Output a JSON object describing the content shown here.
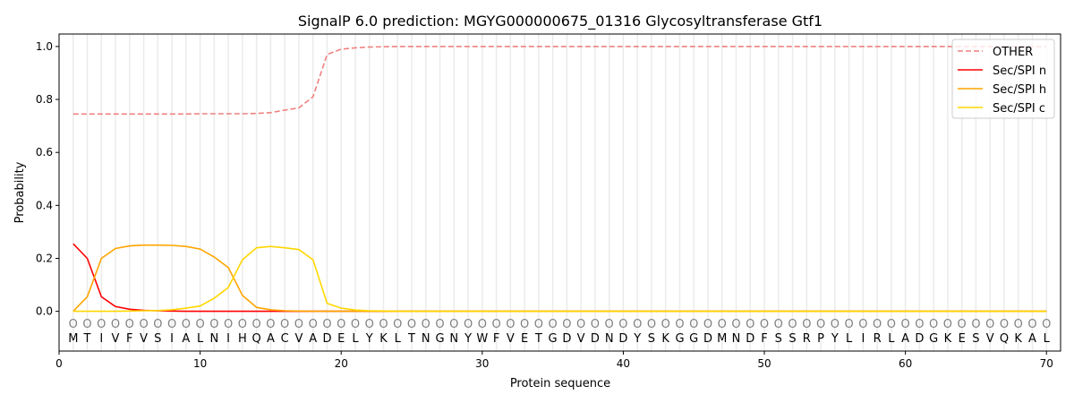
{
  "chart_data": {
    "type": "line",
    "title": "SignalP 6.0 prediction: MGYG000000675_01316 Glycosyltransferase Gtf1",
    "xlabel": "Protein sequence",
    "ylabel": "Probability",
    "xlim": [
      0,
      71
    ],
    "ylim": [
      -0.15,
      1.047
    ],
    "xticks": [
      0,
      10,
      20,
      30,
      40,
      50,
      60,
      70
    ],
    "yticks": [
      0.0,
      0.2,
      0.4,
      0.6,
      0.8,
      1.0
    ],
    "ytick_labels": [
      "0.0",
      "0.2",
      "0.4",
      "0.6",
      "0.8",
      "1.0"
    ],
    "legend_placement": "top-right",
    "vertical_grid": true,
    "sequence": "MTIVFVSIALNIHQACVADELYKLTNGNYWFVETGDVDNDYSKGGDMNDFSSRPYLIRLADGKESVQKAL",
    "position_label_glyph": "O",
    "series": [
      {
        "name": "OTHER",
        "color": "#f08080",
        "dashed": true,
        "values": [
          0.745,
          0.745,
          0.745,
          0.745,
          0.745,
          0.745,
          0.745,
          0.745,
          0.745,
          0.746,
          0.746,
          0.746,
          0.746,
          0.747,
          0.75,
          0.76,
          0.768,
          0.81,
          0.97,
          0.99,
          0.995,
          0.998,
          0.999,
          1,
          1,
          1,
          1,
          1,
          1,
          1,
          1,
          1,
          1,
          1,
          1,
          1,
          1,
          1,
          1,
          1,
          1,
          1,
          1,
          1,
          1,
          1,
          1,
          1,
          1,
          1,
          1,
          1,
          1,
          1,
          1,
          1,
          1,
          1,
          1,
          1,
          1,
          1,
          1,
          1,
          1,
          1,
          1,
          1,
          1,
          1
        ]
      },
      {
        "name": "Sec/SPI n",
        "color": "#ff0000",
        "dashed": false,
        "values": [
          0.255,
          0.2,
          0.055,
          0.018,
          0.008,
          0.004,
          0.002,
          0.001,
          0,
          0,
          0,
          0,
          0,
          0,
          0,
          0,
          0,
          0,
          0,
          0,
          0,
          0,
          0,
          0,
          0,
          0,
          0,
          0,
          0,
          0,
          0,
          0,
          0,
          0,
          0,
          0,
          0,
          0,
          0,
          0,
          0,
          0,
          0,
          0,
          0,
          0,
          0,
          0,
          0,
          0,
          0,
          0,
          0,
          0,
          0,
          0,
          0,
          0,
          0,
          0,
          0,
          0,
          0,
          0,
          0,
          0,
          0,
          0,
          0,
          0
        ]
      },
      {
        "name": "Sec/SPI h",
        "color": "#ffa500",
        "dashed": false,
        "values": [
          0,
          0.055,
          0.2,
          0.237,
          0.247,
          0.25,
          0.25,
          0.249,
          0.245,
          0.235,
          0.205,
          0.165,
          0.06,
          0.015,
          0.006,
          0.002,
          0.001,
          0,
          0,
          0,
          0,
          0,
          0,
          0,
          0,
          0,
          0,
          0,
          0,
          0,
          0,
          0,
          0,
          0,
          0,
          0,
          0,
          0,
          0,
          0,
          0,
          0,
          0,
          0,
          0,
          0,
          0,
          0,
          0,
          0,
          0,
          0,
          0,
          0,
          0,
          0,
          0,
          0,
          0,
          0,
          0,
          0,
          0,
          0,
          0,
          0,
          0,
          0,
          0,
          0
        ]
      },
      {
        "name": "Sec/SPI c",
        "color": "#ffd700",
        "dashed": false,
        "values": [
          0,
          0,
          0,
          0,
          0.001,
          0.002,
          0.003,
          0.006,
          0.012,
          0.02,
          0.05,
          0.09,
          0.195,
          0.24,
          0.245,
          0.24,
          0.233,
          0.195,
          0.03,
          0.012,
          0.005,
          0.002,
          0.001,
          0,
          0,
          0,
          0,
          0,
          0,
          0,
          0,
          0,
          0,
          0,
          0,
          0,
          0,
          0,
          0,
          0,
          0,
          0,
          0,
          0,
          0,
          0,
          0,
          0,
          0,
          0,
          0,
          0,
          0,
          0,
          0,
          0,
          0,
          0,
          0,
          0,
          0,
          0,
          0,
          0,
          0,
          0,
          0,
          0,
          0,
          0
        ]
      }
    ]
  }
}
